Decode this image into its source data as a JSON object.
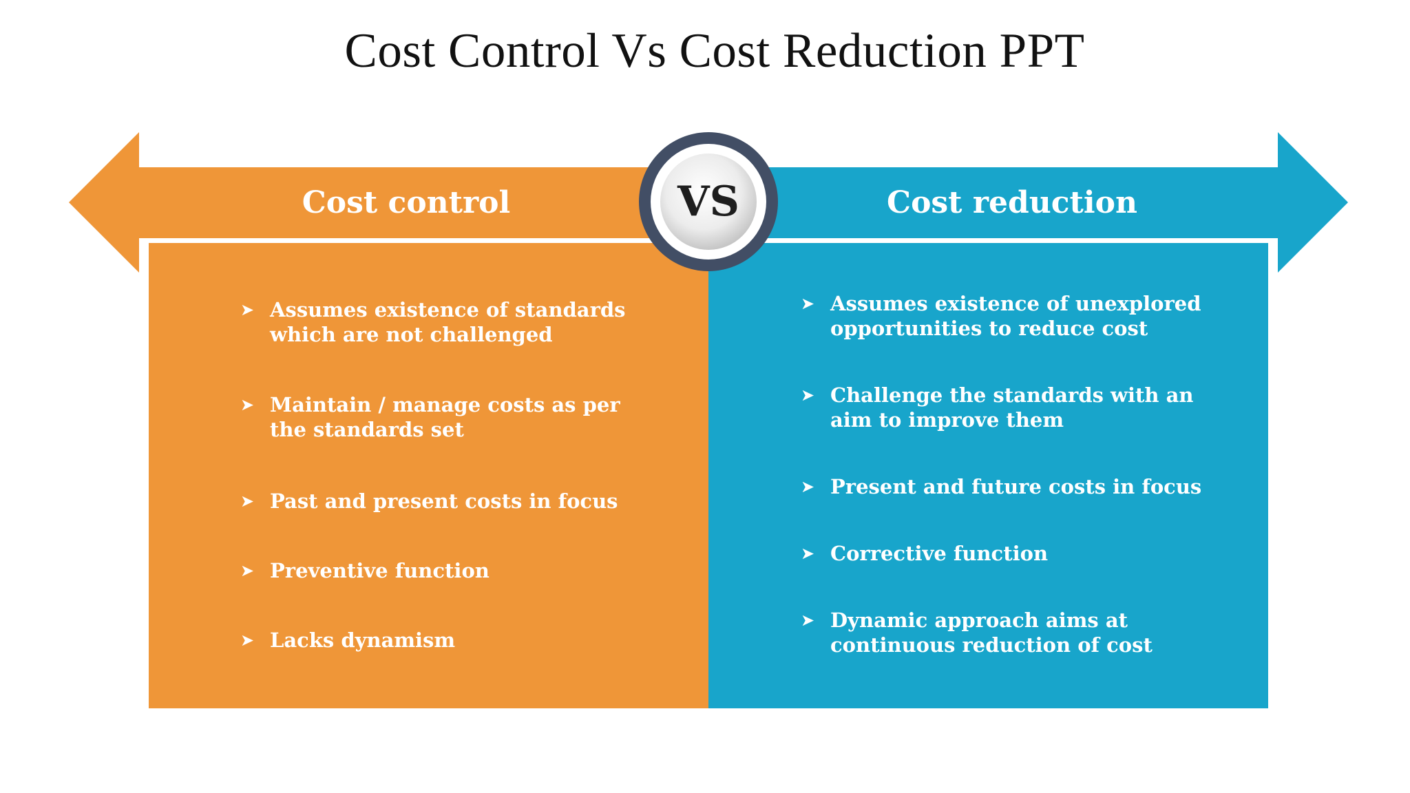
{
  "title": "Cost Control Vs Cost Reduction PPT",
  "vs_label": "VS",
  "colors": {
    "left": "#EF9638",
    "right": "#18A5CB",
    "ring": "#424E65",
    "text": "#ffffff"
  },
  "left": {
    "heading": "Cost control",
    "items": [
      "Assumes existence of standards which are not challenged",
      "Maintain / manage costs as per the standards set",
      "Past and present costs in focus",
      "Preventive function",
      "Lacks dynamism"
    ]
  },
  "right": {
    "heading": "Cost reduction",
    "items": [
      "Assumes existence of unexplored opportunities to reduce cost",
      "Challenge the standards with an aim to improve them",
      "Present  and future costs in focus",
      "Corrective function",
      "Dynamic approach aims at continuous reduction of cost"
    ]
  },
  "bullet_icon": "arrowhead-bullet-icon"
}
